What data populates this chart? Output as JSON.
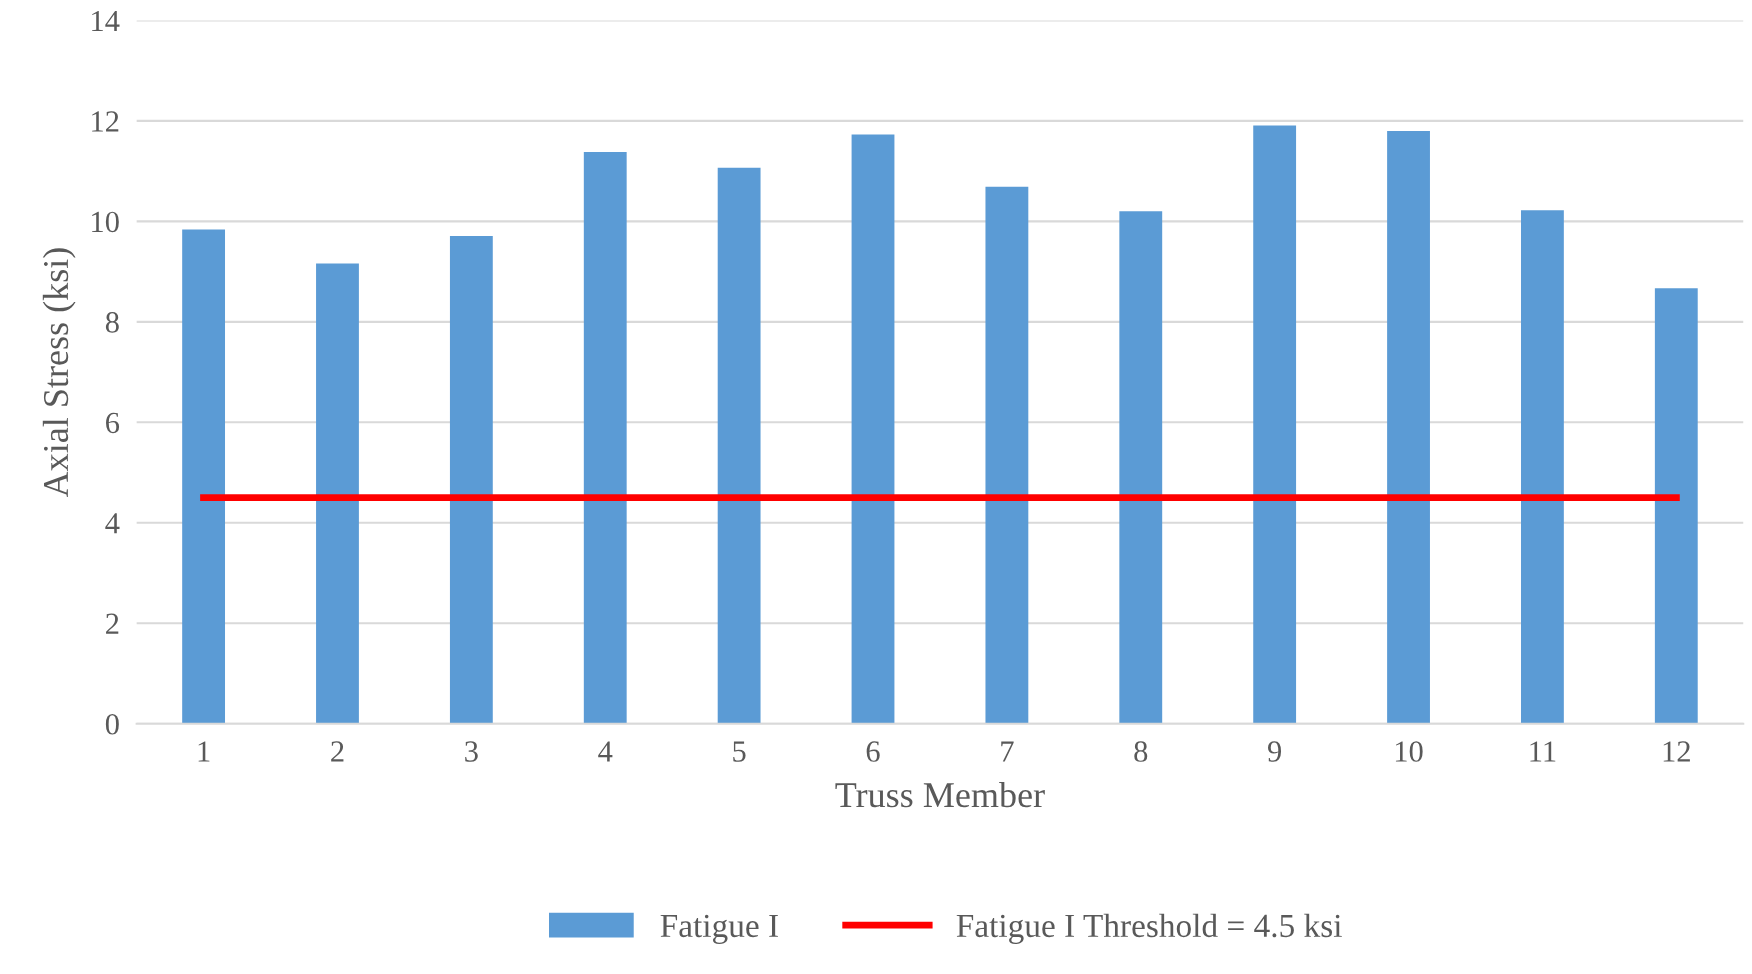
{
  "chart_data": {
    "type": "bar",
    "xlabel": "Truss Member",
    "ylabel": "Axial Stress (ksi)",
    "categories": [
      "1",
      "2",
      "3",
      "4",
      "5",
      "6",
      "7",
      "8",
      "9",
      "10",
      "11",
      "12"
    ],
    "series": [
      {
        "name": "Fatigue I",
        "color": "#5b9bd5",
        "values": [
          9.84,
          9.16,
          9.71,
          11.38,
          11.07,
          11.73,
          10.69,
          10.2,
          11.91,
          11.8,
          10.22,
          8.67
        ]
      },
      {
        "name": "Fatigue I Threshold = 4.5 ksi",
        "type": "line",
        "color": "#ff0000",
        "values": [
          4.5,
          4.5,
          4.5,
          4.5,
          4.5,
          4.5,
          4.5,
          4.5,
          4.5,
          4.5,
          4.5,
          4.5
        ]
      }
    ],
    "ylim": [
      0,
      14
    ],
    "yticks": [
      0,
      2,
      4,
      6,
      8,
      10,
      12,
      14
    ],
    "grid": "y",
    "legend": "bottom"
  }
}
